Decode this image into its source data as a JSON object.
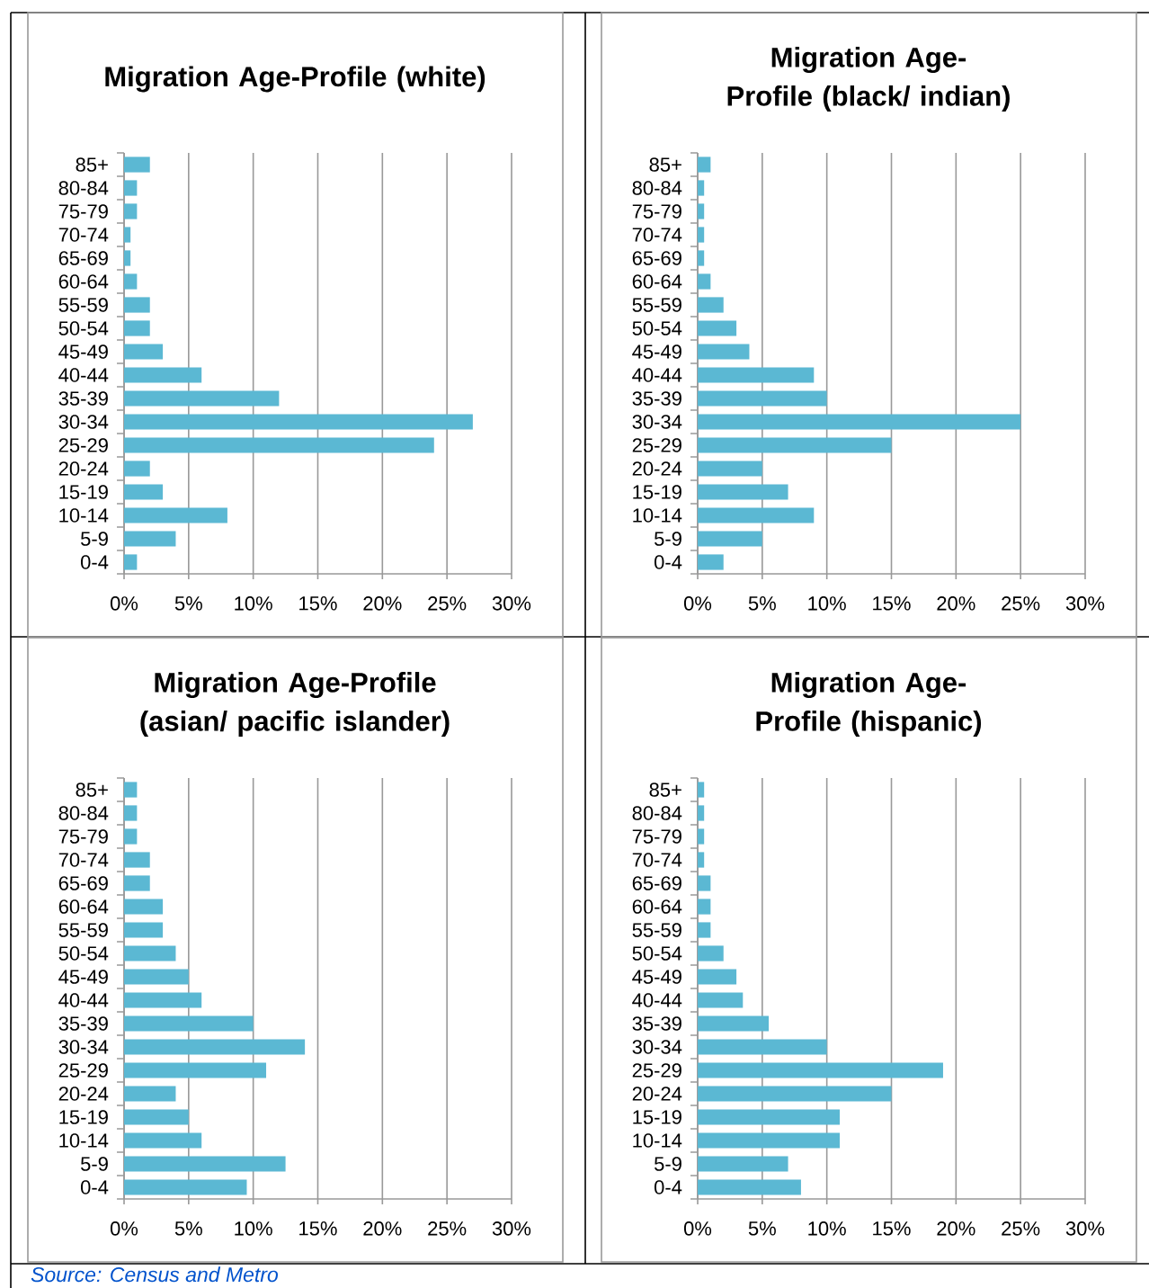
{
  "chart_data": [
    {
      "type": "bar",
      "orientation": "horizontal",
      "title": "Migration Age-Profile (white)",
      "categories": [
        "85+",
        "80-84",
        "75-79",
        "70-74",
        "65-69",
        "60-64",
        "55-59",
        "50-54",
        "45-49",
        "40-44",
        "35-39",
        "30-34",
        "25-29",
        "20-24",
        "15-19",
        "10-14",
        "5-9",
        "0-4"
      ],
      "values": [
        2,
        1,
        1,
        0.5,
        0.5,
        1,
        2,
        2,
        3,
        6,
        12,
        27,
        24,
        2,
        3,
        8,
        4,
        1
      ],
      "color": "#5bb8d3",
      "xlim": [
        0,
        30
      ],
      "xticks": [
        {
          "value": 0,
          "label": "0%"
        },
        {
          "value": 5,
          "label": "5%"
        },
        {
          "value": 10,
          "label": "10%"
        },
        {
          "value": 15,
          "label": "15%"
        },
        {
          "value": 20,
          "label": "20%"
        },
        {
          "value": 25,
          "label": "25%"
        },
        {
          "value": 30,
          "label": "30%"
        }
      ],
      "grid": "x"
    },
    {
      "type": "bar",
      "orientation": "horizontal",
      "title": "Migration Age-Profile (black/ indian)",
      "categories": [
        "85+",
        "80-84",
        "75-79",
        "70-74",
        "65-69",
        "60-64",
        "55-59",
        "50-54",
        "45-49",
        "40-44",
        "35-39",
        "30-34",
        "25-29",
        "20-24",
        "15-19",
        "10-14",
        "5-9",
        "0-4"
      ],
      "values": [
        1,
        0.5,
        0.5,
        0.5,
        0.5,
        1,
        2,
        3,
        4,
        9,
        10,
        25,
        15,
        5,
        7,
        9,
        5,
        2
      ],
      "color": "#5bb8d3",
      "xlim": [
        0,
        30
      ],
      "xticks": [
        {
          "value": 0,
          "label": "0%"
        },
        {
          "value": 5,
          "label": "5%"
        },
        {
          "value": 10,
          "label": "10%"
        },
        {
          "value": 15,
          "label": "15%"
        },
        {
          "value": 20,
          "label": "20%"
        },
        {
          "value": 25,
          "label": "25%"
        },
        {
          "value": 30,
          "label": "30%"
        }
      ],
      "grid": "x"
    },
    {
      "type": "bar",
      "orientation": "horizontal",
      "title": "Migration Age-Profile (asian/ pacific islander)",
      "categories": [
        "85+",
        "80-84",
        "75-79",
        "70-74",
        "65-69",
        "60-64",
        "55-59",
        "50-54",
        "45-49",
        "40-44",
        "35-39",
        "30-34",
        "25-29",
        "20-24",
        "15-19",
        "10-14",
        "5-9",
        "0-4"
      ],
      "values": [
        1,
        1,
        1,
        2,
        2,
        3,
        3,
        4,
        5,
        6,
        10,
        14,
        11,
        4,
        5,
        6,
        12.5,
        9.5
      ],
      "color": "#5bb8d3",
      "xlim": [
        0,
        30
      ],
      "xticks": [
        {
          "value": 0,
          "label": "0%"
        },
        {
          "value": 5,
          "label": "5%"
        },
        {
          "value": 10,
          "label": "10%"
        },
        {
          "value": 15,
          "label": "15%"
        },
        {
          "value": 20,
          "label": "20%"
        },
        {
          "value": 25,
          "label": "25%"
        },
        {
          "value": 30,
          "label": "30%"
        }
      ],
      "grid": "x"
    },
    {
      "type": "bar",
      "orientation": "horizontal",
      "title": "Migration Age-Profile (hispanic)",
      "categories": [
        "85+",
        "80-84",
        "75-79",
        "70-74",
        "65-69",
        "60-64",
        "55-59",
        "50-54",
        "45-49",
        "40-44",
        "35-39",
        "30-34",
        "25-29",
        "20-24",
        "15-19",
        "10-14",
        "5-9",
        "0-4"
      ],
      "values": [
        0.5,
        0.5,
        0.5,
        0.5,
        1,
        1,
        1,
        2,
        3,
        3.5,
        5.5,
        10,
        19,
        15,
        11,
        11,
        7,
        8
      ],
      "color": "#5bb8d3",
      "xlim": [
        0,
        30
      ],
      "xticks": [
        {
          "value": 0,
          "label": "0%"
        },
        {
          "value": 5,
          "label": "5%"
        },
        {
          "value": 10,
          "label": "10%"
        },
        {
          "value": 15,
          "label": "15%"
        },
        {
          "value": 20,
          "label": "20%"
        },
        {
          "value": 25,
          "label": "25%"
        },
        {
          "value": 30,
          "label": "30%"
        }
      ],
      "grid": "x",
      "annotations": [
        "Source: Census and Metro"
      ]
    }
  ]
}
